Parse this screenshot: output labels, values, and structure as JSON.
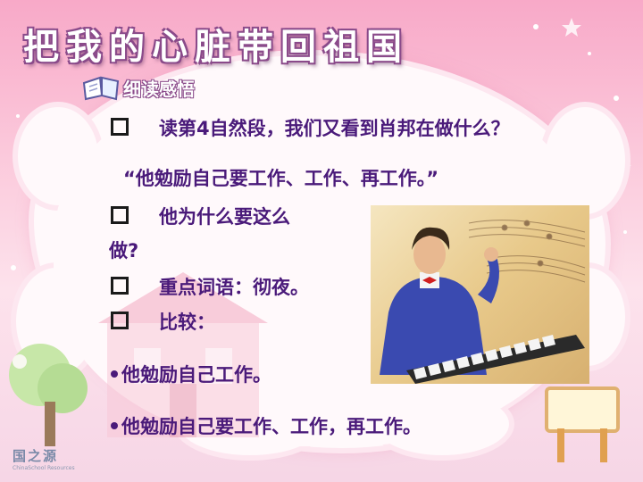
{
  "title": "把我的心脏带回祖国",
  "subhead": "细读感悟",
  "lines": {
    "q1": "读第4自然段，我们又看到肖邦在做什么？",
    "quote": "“他勉励自己要工作、工作、再工作。”",
    "q2a": "他为什么要这么",
    "q2b": "做?",
    "q3": "重点词语：彻夜。",
    "q4": "比较：",
    "b1": "他勉励自己工作。",
    "b2": "他勉励自己要工作、工作，再工作。"
  },
  "logo": {
    "main": "国之源",
    "sub": "ChinaSchool Resources"
  },
  "colors": {
    "text": "#4a1a7a",
    "background": "#f8a9c8",
    "cloud": "#fff9fb"
  }
}
